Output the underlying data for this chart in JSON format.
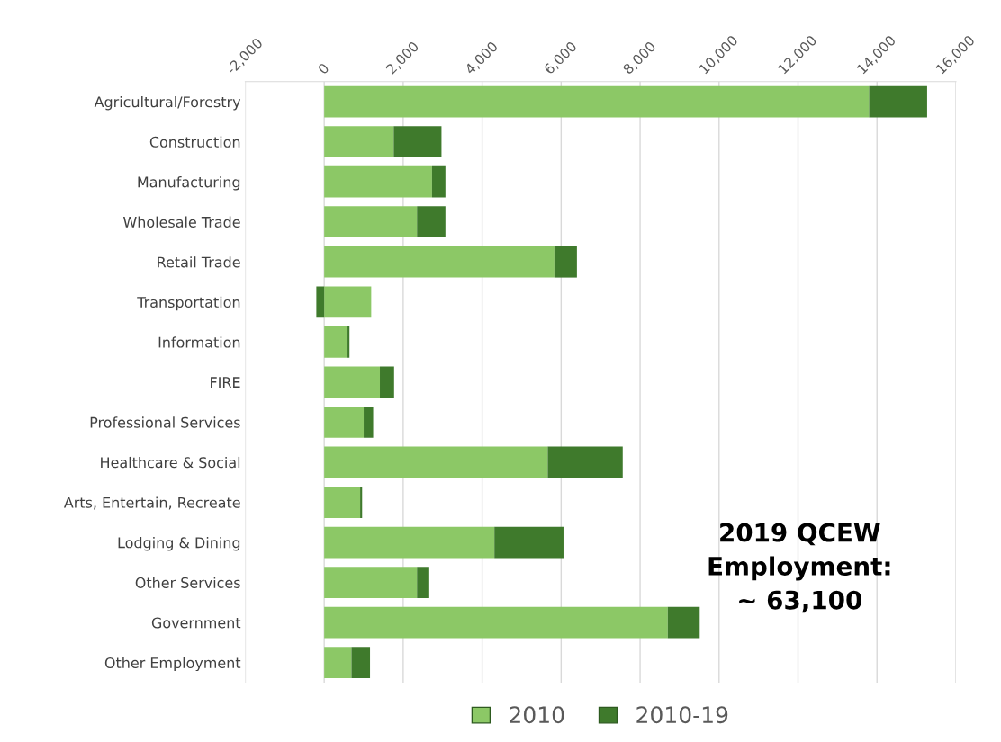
{
  "chart_data": {
    "type": "bar",
    "orientation": "horizontal",
    "stacked": true,
    "categories": [
      "Agricultural/Forestry",
      "Construction",
      "Manufacturing",
      "Wholesale Trade",
      "Retail Trade",
      "Transportation",
      "Information",
      "FIRE",
      "Professional Services",
      "Healthcare & Social",
      "Arts, Entertain, Recreate",
      "Lodging & Dining",
      "Other Services",
      "Government",
      "Other Employment"
    ],
    "series": [
      {
        "name": "2010",
        "color": "#8cc866",
        "values": [
          13800,
          1760,
          2730,
          2350,
          5830,
          1190,
          590,
          1410,
          1000,
          5660,
          910,
          4310,
          2350,
          8700,
          690
        ]
      },
      {
        "name": "2010-19",
        "color": "#3f7a2c",
        "values": [
          1470,
          1210,
          340,
          720,
          570,
          -200,
          50,
          360,
          240,
          1900,
          50,
          1750,
          310,
          810,
          470
        ]
      }
    ],
    "xlim": [
      -2000,
      16000
    ],
    "xticks": [
      {
        "value": -2000,
        "label": "-2,000"
      },
      0,
      {
        "value": 2000,
        "label": "2,000"
      },
      {
        "value": 4000,
        "label": "4,000"
      },
      {
        "value": 6000,
        "label": "6,000"
      },
      {
        "value": 8000,
        "label": "8,000"
      },
      {
        "value": 10000,
        "label": "10,000"
      },
      {
        "value": 12000,
        "label": "12,000"
      },
      {
        "value": 14000,
        "label": "14,000"
      },
      {
        "value": 16000,
        "label": "16,000"
      }
    ],
    "grid": "x",
    "legend": "bottom",
    "annotations": [
      "2019 QCEW\nEmployment:\n~ 63,100"
    ]
  }
}
